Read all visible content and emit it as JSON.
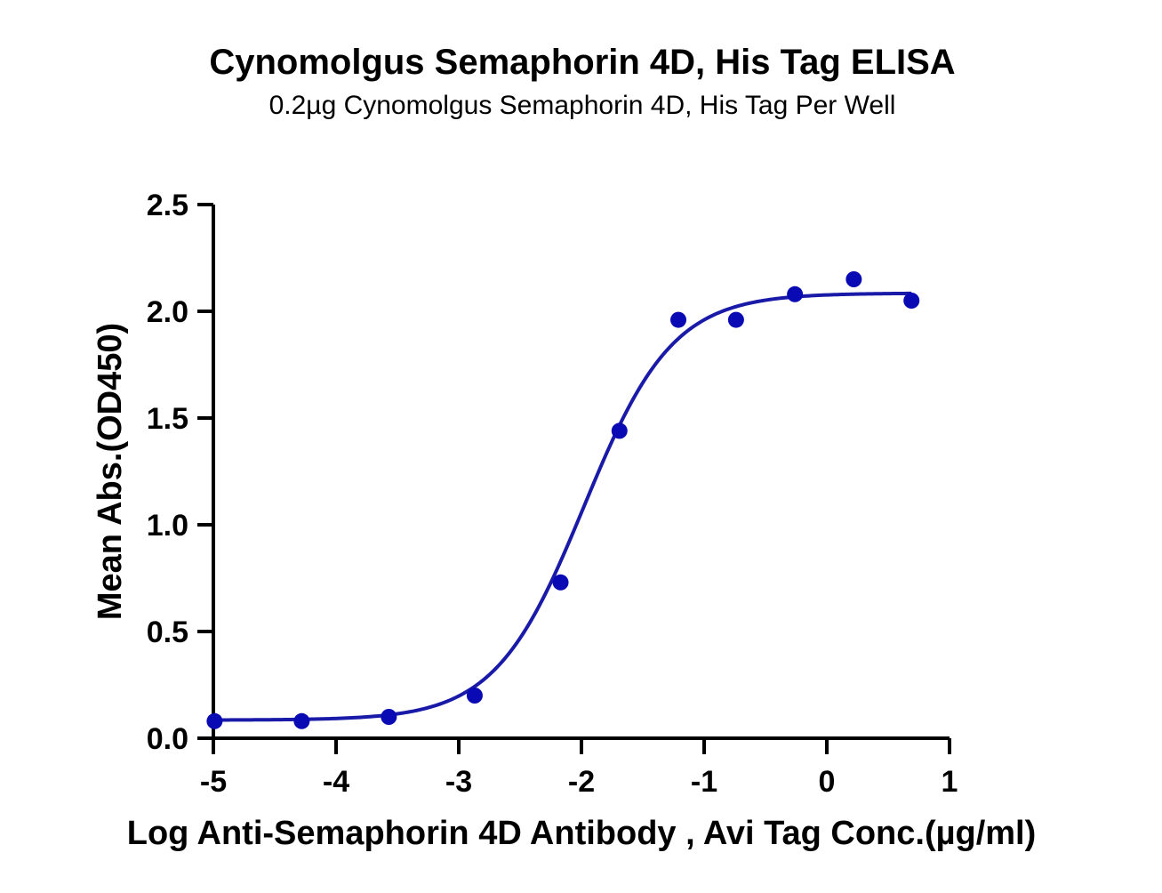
{
  "chart_data": {
    "type": "scatter",
    "title": "Cynomolgus Semaphorin 4D, His Tag ELISA",
    "subtitle": "0.2µg Cynomolgus Semaphorin 4D, His Tag Per Well",
    "xlabel": "Log Anti-Semaphorin 4D Antibody , Avi Tag Conc.(µg/ml)",
    "ylabel": "Mean Abs.(OD450)",
    "xlim": [
      -5,
      1
    ],
    "ylim": [
      0,
      2.5
    ],
    "x_ticks": [
      -5,
      -4,
      -3,
      -2,
      -1,
      0,
      1
    ],
    "x_tick_labels": [
      "-5",
      "-4",
      "-3",
      "-2",
      "-1",
      "0",
      "1"
    ],
    "y_ticks": [
      0,
      0.5,
      1.0,
      1.5,
      2.0,
      2.5
    ],
    "y_tick_labels": [
      "0.0",
      "0.5",
      "1.0",
      "1.5",
      "2.0",
      "2.5"
    ],
    "grid": false,
    "legend": "none",
    "series": [
      {
        "color": "#0a0ab4",
        "x": [
          -4.99,
          -4.28,
          -3.57,
          -2.87,
          -2.17,
          -1.69,
          -1.21,
          -0.74,
          -0.26,
          0.22,
          0.69
        ],
        "y": [
          0.08,
          0.08,
          0.1,
          0.2,
          0.73,
          1.44,
          1.96,
          1.96,
          2.08,
          2.15,
          2.05
        ]
      }
    ],
    "fit_curve": {
      "model": "4PL",
      "color": "#1a1aa8",
      "bottom": 0.085,
      "top": 2.085,
      "log_ec50": -1.98,
      "hill_slope": 1.2
    }
  }
}
